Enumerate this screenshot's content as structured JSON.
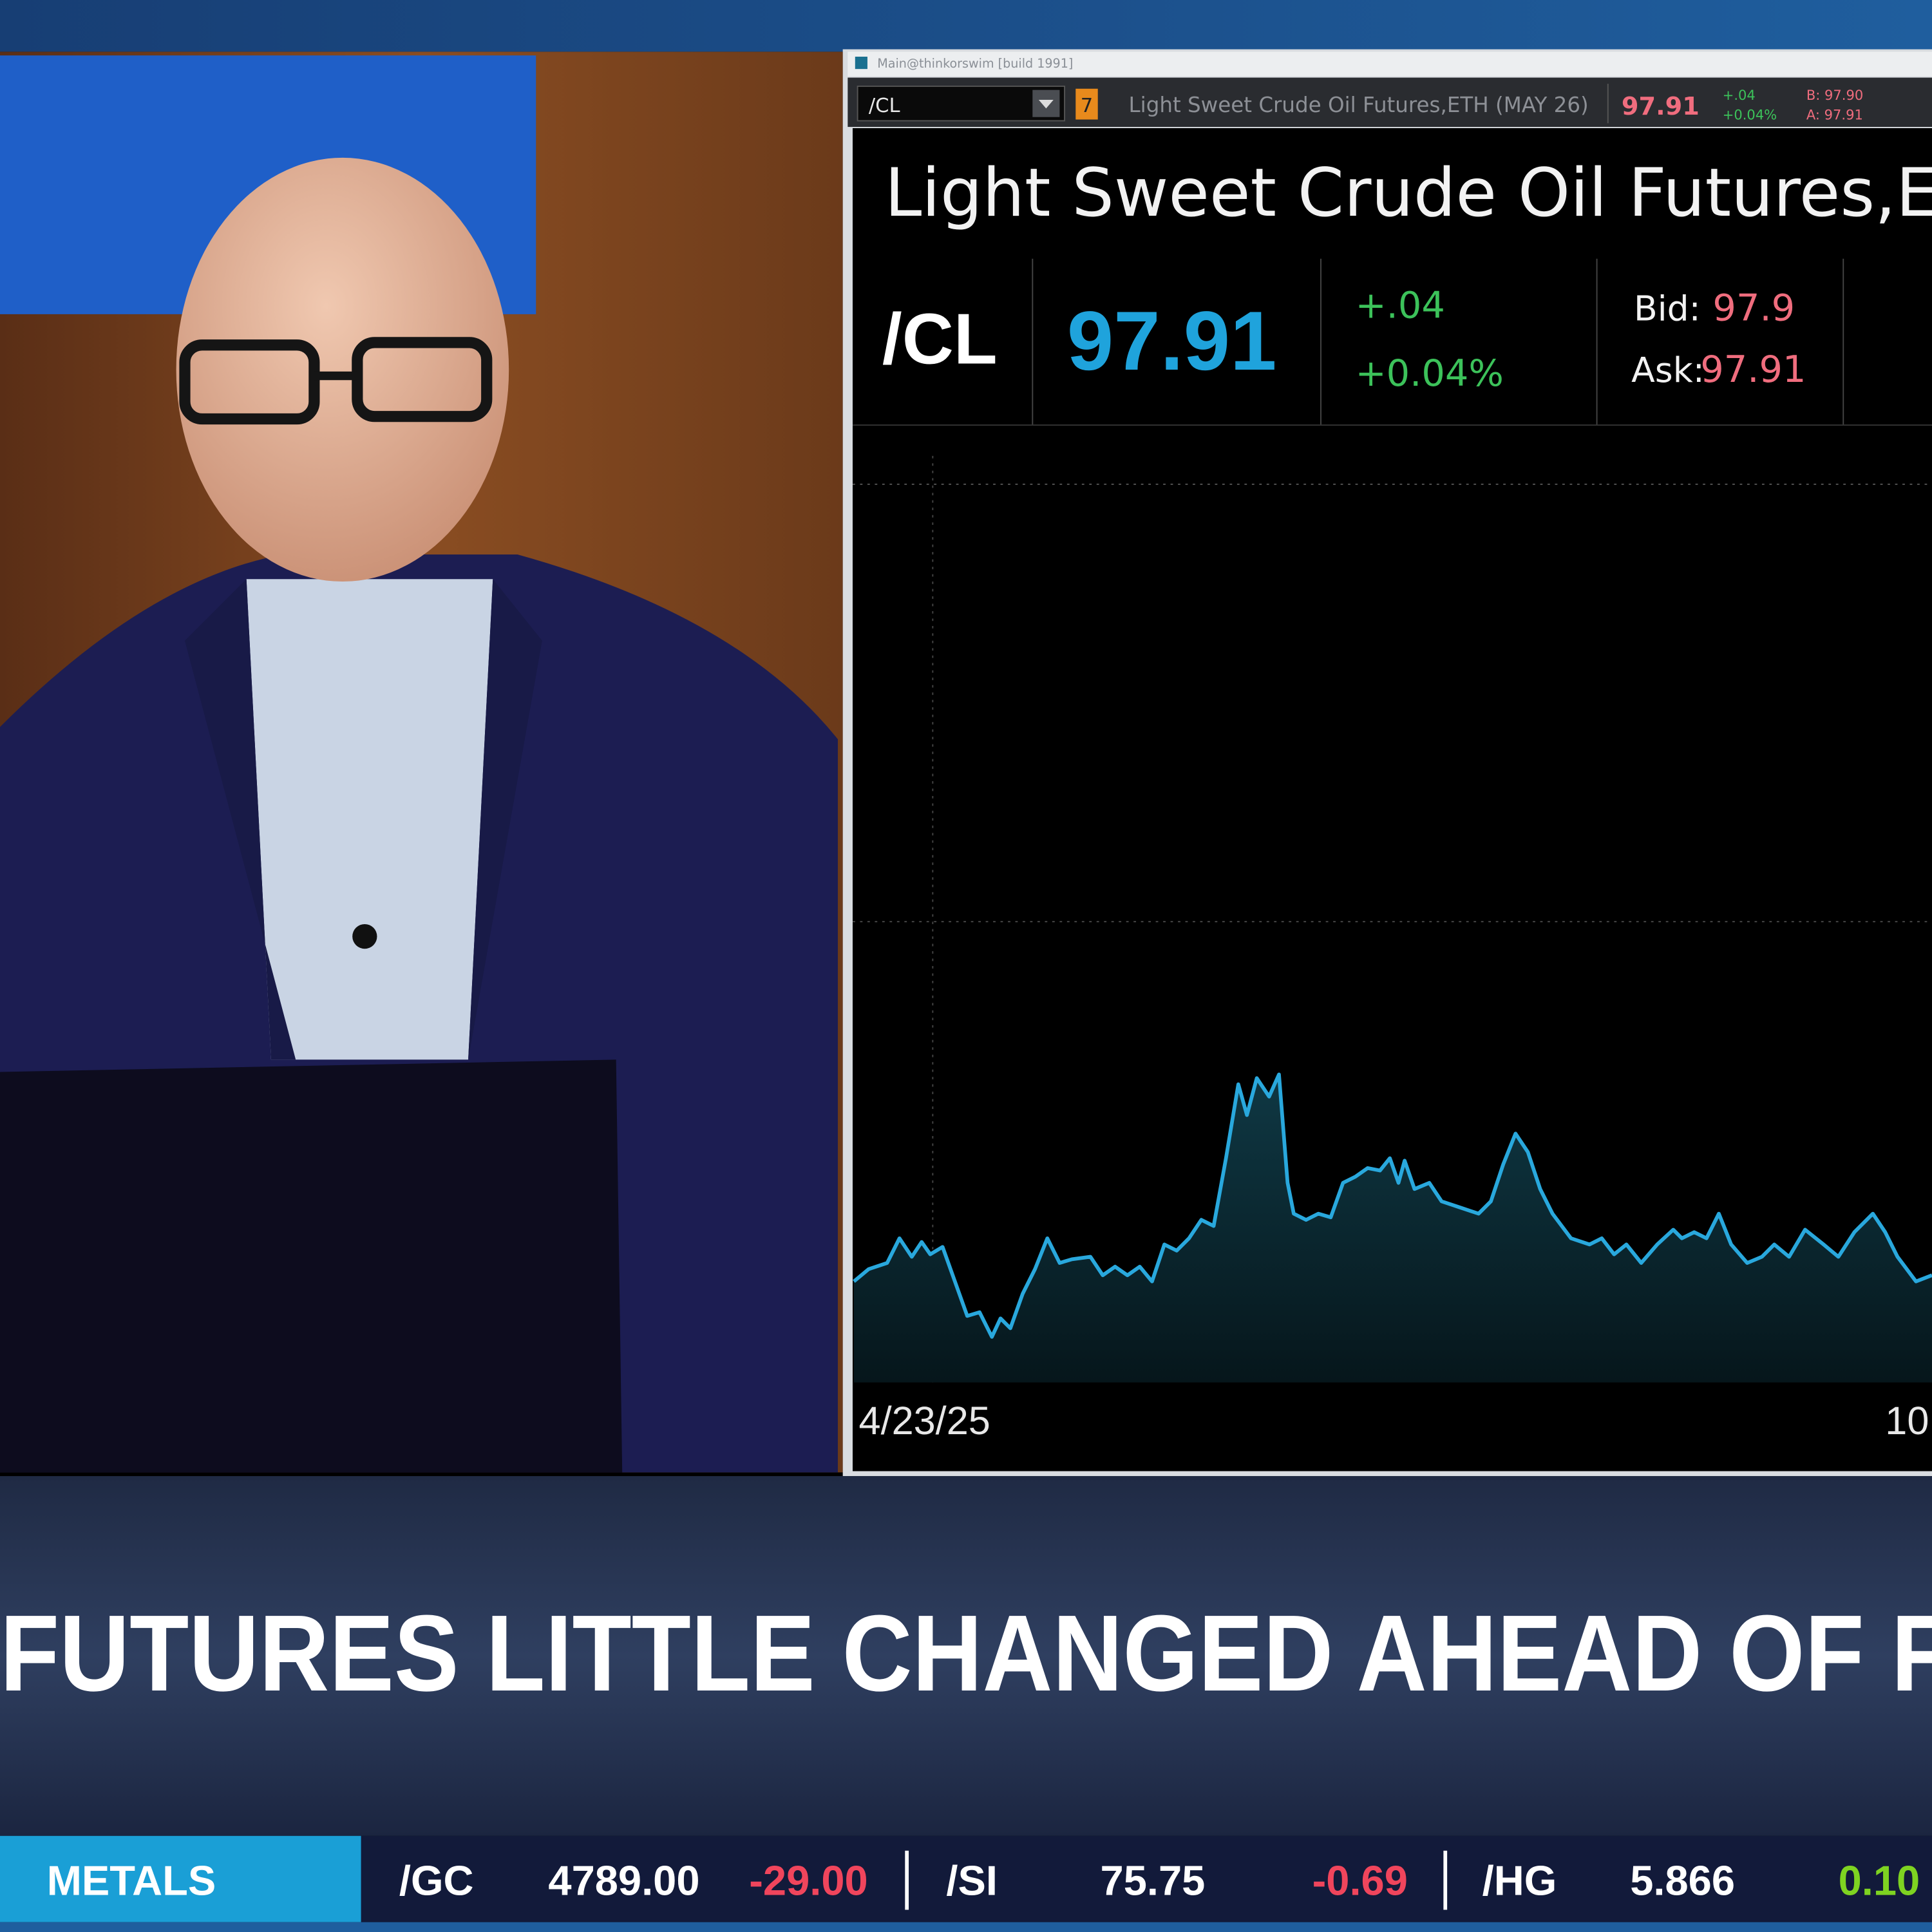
{
  "window": {
    "title": "Main@thinkorswim [build 1991]",
    "toolbar": {
      "symbol": "/CL",
      "badge": "7",
      "description": "Light Sweet Crude Oil Futures,ETH (MAY 26)",
      "last": "97.91",
      "change": "+.04",
      "change_pct": "+0.04%",
      "bid": "B: 97.90",
      "ask": "A: 97.91"
    },
    "header": {
      "title": "Light Sweet Crude Oil Futures,ET",
      "symbol": "/CL",
      "last": "97.91",
      "change": "+.04",
      "change_pct": "+0.04%",
      "bid_label": "Bid:",
      "bid": "97.9",
      "ask_label": "Ask:",
      "ask": "97.91"
    },
    "chart": {
      "x_labels": [
        "4/23/25",
        "10"
      ]
    }
  },
  "headline": "FUTURES LITTLE CHANGED AHEAD OF FR",
  "ticker": {
    "category": "METALS",
    "items": [
      {
        "symbol": "/GC",
        "price": "4789.00",
        "change": "-29.00"
      },
      {
        "symbol": "/SI",
        "price": "75.75",
        "change": "-0.69"
      },
      {
        "symbol": "/HG",
        "price": "5.866",
        "change": "0.10"
      }
    ]
  }
}
